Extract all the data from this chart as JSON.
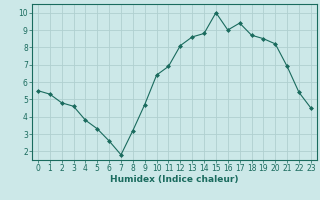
{
  "x": [
    0,
    1,
    2,
    3,
    4,
    5,
    6,
    7,
    8,
    9,
    10,
    11,
    12,
    13,
    14,
    15,
    16,
    17,
    18,
    19,
    20,
    21,
    22,
    23
  ],
  "y": [
    5.5,
    5.3,
    4.8,
    4.6,
    3.8,
    3.3,
    2.6,
    1.8,
    3.2,
    4.7,
    6.4,
    6.9,
    8.1,
    8.6,
    8.8,
    10.0,
    9.0,
    9.4,
    8.7,
    8.5,
    8.2,
    6.9,
    5.4,
    4.5
  ],
  "line_color": "#1a6b5e",
  "marker": "D",
  "marker_size": 2.0,
  "bg_color": "#cce8e8",
  "grid_color": "#b0d0d0",
  "xlabel": "Humidex (Indice chaleur)",
  "xlim": [
    -0.5,
    23.5
  ],
  "ylim": [
    1.5,
    10.5
  ],
  "yticks": [
    2,
    3,
    4,
    5,
    6,
    7,
    8,
    9,
    10
  ],
  "xticks": [
    0,
    1,
    2,
    3,
    4,
    5,
    6,
    7,
    8,
    9,
    10,
    11,
    12,
    13,
    14,
    15,
    16,
    17,
    18,
    19,
    20,
    21,
    22,
    23
  ],
  "tick_fontsize": 5.5,
  "xlabel_fontsize": 6.5
}
